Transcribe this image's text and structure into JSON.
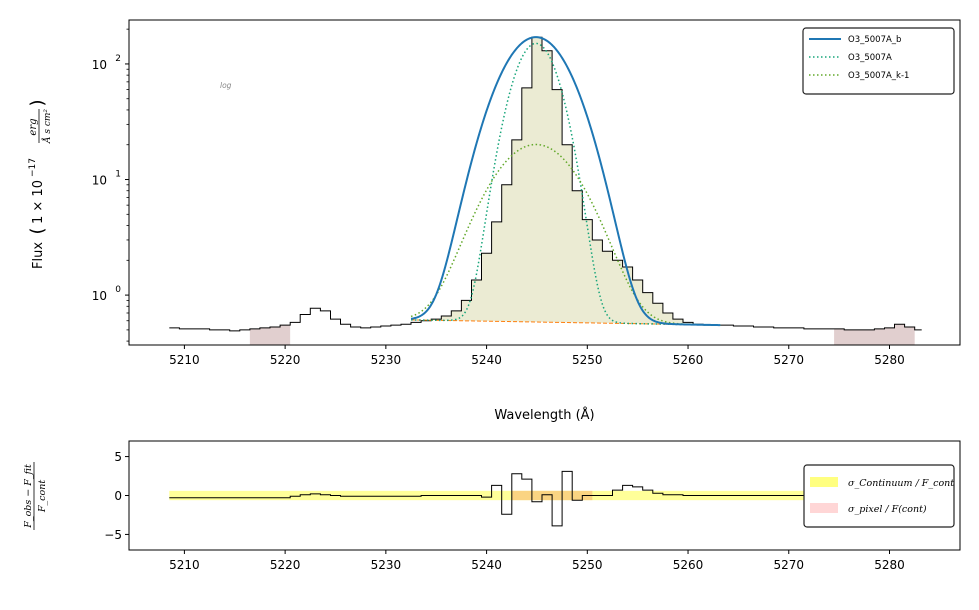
{
  "chart_data": [
    {
      "type": "line",
      "panel": "spectrum",
      "xlabel": "Wavelength (Å)",
      "ylabel": {
        "prefix": "Flux",
        "factor": "1 × 10",
        "exponent": "−17",
        "numerator": "erg",
        "denominator": "Å s cm²"
      },
      "yscale": "log",
      "xlim": [
        5204.5,
        5287
      ],
      "ylim": [
        0.37,
        240
      ],
      "xticks": [
        5210,
        5220,
        5230,
        5240,
        5250,
        5260,
        5270,
        5280
      ],
      "yticks": [
        {
          "value": 1,
          "mantissa": "10",
          "exp": "0"
        },
        {
          "value": 10,
          "mantissa": "10",
          "exp": "1"
        },
        {
          "value": 100,
          "mantissa": "10",
          "exp": "2"
        }
      ],
      "annotation": "log",
      "legend_position": "top-right",
      "observed_step": {
        "x": [
          5208.5,
          5209.5,
          5210.5,
          5211.5,
          5212.5,
          5213.5,
          5214.5,
          5215.5,
          5216.5,
          5217.5,
          5218.5,
          5219.5,
          5220.5,
          5221.5,
          5222.5,
          5223.5,
          5224.5,
          5225.5,
          5226.5,
          5227.5,
          5228.5,
          5229.5,
          5230.5,
          5231.5,
          5232.5,
          5233.5,
          5234.5,
          5235.5,
          5236.5,
          5237.5,
          5238.5,
          5239.5,
          5240.5,
          5241.5,
          5242.5,
          5243.5,
          5244.5,
          5245.5,
          5246.5,
          5247.5,
          5248.5,
          5249.5,
          5250.5,
          5251.5,
          5252.5,
          5253.5,
          5254.5,
          5255.5,
          5256.5,
          5257.5,
          5258.5,
          5259.5,
          5260.5,
          5261.5,
          5262.5,
          5263.5,
          5264.5,
          5265.5,
          5266.5,
          5267.5,
          5268.5,
          5269.5,
          5270.5,
          5271.5,
          5272.5,
          5273.5,
          5274.5,
          5275.5,
          5276.5,
          5277.5,
          5278.5,
          5279.5,
          5280.5,
          5281.5,
          5282.5,
          5283.2
        ],
        "y": [
          0.52,
          0.51,
          0.51,
          0.51,
          0.5,
          0.5,
          0.49,
          0.5,
          0.51,
          0.52,
          0.53,
          0.55,
          0.58,
          0.68,
          0.77,
          0.73,
          0.62,
          0.56,
          0.53,
          0.52,
          0.53,
          0.54,
          0.55,
          0.56,
          0.58,
          0.6,
          0.62,
          0.66,
          0.73,
          0.9,
          1.35,
          2.3,
          4.3,
          9.0,
          22,
          62,
          170,
          130,
          60,
          20,
          8.0,
          4.5,
          3.0,
          2.4,
          2.0,
          1.75,
          1.35,
          1.05,
          0.85,
          0.7,
          0.62,
          0.58,
          0.56,
          0.55,
          0.55,
          0.55,
          0.54,
          0.54,
          0.53,
          0.53,
          0.52,
          0.52,
          0.52,
          0.51,
          0.51,
          0.51,
          0.51,
          0.5,
          0.5,
          0.5,
          0.51,
          0.52,
          0.56,
          0.53,
          0.5,
          0.5
        ]
      },
      "series": [
        {
          "name": "O3_5007A_b",
          "style": "solid",
          "color": "#1f77b4",
          "center": 5244.9,
          "sigma": 2.85,
          "amplitude": 170,
          "x_range": [
            5232.5,
            5263.2
          ]
        },
        {
          "name": "O3_5007A",
          "style": "dotted",
          "color": "#17a57a",
          "center": 5244.9,
          "sigma": 1.85,
          "amplitude": 150,
          "x_range": [
            5232.5,
            5263.2
          ]
        },
        {
          "name": "O3_5007A_k-1",
          "style": "dotted",
          "color": "#62a82a",
          "center": 5244.9,
          "sigma": 3.55,
          "amplitude": 19.5,
          "x_range": [
            5232.5,
            5263.2
          ]
        }
      ],
      "continuum": {
        "color": "#ff7f0e",
        "x_range": [
          5232.5,
          5263.2
        ],
        "y_start": 0.61,
        "y_end": 0.55
      },
      "fill_color": "#e6e6c8",
      "fill_range": [
        5233.5,
        5263.2
      ],
      "masked_color": "#c8a8a8",
      "masked_regions": [
        [
          5216.5,
          5220.5
        ],
        [
          5274.5,
          5282.5
        ]
      ]
    },
    {
      "type": "line",
      "panel": "residuals",
      "ylabel": {
        "numerator": "F_obs − F_fit",
        "denominator": "F_cont"
      },
      "xlim": [
        5204.5,
        5287
      ],
      "ylim": [
        -7,
        7
      ],
      "xticks": [
        5210,
        5220,
        5230,
        5240,
        5250,
        5260,
        5270,
        5280
      ],
      "yticks": [
        -5,
        0,
        5
      ],
      "legend_position": "right",
      "legend": [
        {
          "label": "σ_Continuum / F_cont",
          "color": "#ffff55"
        },
        {
          "label": "σ_pixel / F(cont)",
          "color": "#ffc8c8"
        }
      ],
      "sigma_continuum_band": 0.6,
      "sigma_pixel_band": [
        {
          "x_range": [
            5242.5,
            5250.5
          ],
          "half_width": 0.6
        }
      ],
      "residual_step": {
        "x": [
          5208.5,
          5219.5,
          5220.5,
          5221.5,
          5222.5,
          5223.5,
          5224.5,
          5225.5,
          5232.5,
          5233.5,
          5234.5,
          5237.5,
          5239.5,
          5240.5,
          5241.5,
          5242.5,
          5243.5,
          5244.5,
          5245.5,
          5246.5,
          5247.5,
          5248.5,
          5249.5,
          5250.5,
          5252.5,
          5253.5,
          5254.5,
          5255.5,
          5256.5,
          5257.5,
          5259.5,
          5260.5,
          5278.5,
          5279.5,
          5280.5,
          5281.5,
          5283.2
        ],
        "y": [
          -0.3,
          -0.3,
          -0.1,
          0.1,
          0.2,
          0.1,
          0.0,
          -0.1,
          -0.1,
          0.0,
          0.0,
          0.0,
          -0.2,
          1.3,
          -2.4,
          2.8,
          2.1,
          -0.8,
          0.1,
          -3.9,
          3.1,
          -0.6,
          0.0,
          0.0,
          0.7,
          1.3,
          1.1,
          0.7,
          0.3,
          0.1,
          0.0,
          0.0,
          -0.1,
          -0.2,
          -0.1,
          0.0,
          0.0
        ]
      }
    }
  ]
}
